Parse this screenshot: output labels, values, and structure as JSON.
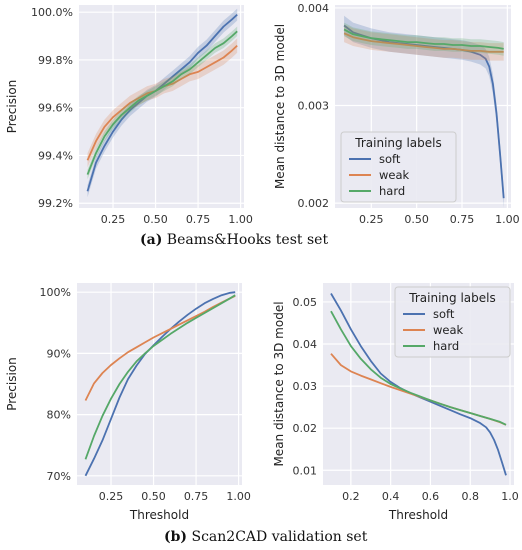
{
  "captions": [
    {
      "letter": "(a)",
      "text": "Beams&Hooks test set"
    },
    {
      "letter": "(b)",
      "text": "Scan2CAD validation set"
    }
  ],
  "colors": {
    "soft": "#4c72b0",
    "weak": "#dd8452",
    "hard": "#55a868"
  },
  "chart_data": [
    {
      "id": "a-left",
      "type": "line",
      "title": "",
      "xlabel": "",
      "ylabel": "Precision",
      "xlim": [
        0.05,
        1.02
      ],
      "ylim": [
        99.18,
        100.03
      ],
      "xticks": [
        0.25,
        0.5,
        0.75,
        1.0
      ],
      "xtick_labels": [
        "0.25",
        "0.50",
        "0.75",
        "1.00"
      ],
      "yticks": [
        99.2,
        99.4,
        99.6,
        99.8,
        100.0
      ],
      "ytick_labels": [
        "99.2%",
        "99.4%",
        "99.6%",
        "99.8%",
        "100.0%"
      ],
      "grid": true,
      "band": true,
      "legend": null,
      "series": [
        {
          "key": "soft",
          "x": [
            0.1,
            0.15,
            0.2,
            0.25,
            0.3,
            0.35,
            0.4,
            0.45,
            0.5,
            0.55,
            0.6,
            0.65,
            0.7,
            0.75,
            0.8,
            0.85,
            0.9,
            0.95,
            0.98
          ],
          "y": [
            99.25,
            99.37,
            99.44,
            99.5,
            99.55,
            99.59,
            99.62,
            99.65,
            99.67,
            99.7,
            99.73,
            99.76,
            99.79,
            99.83,
            99.86,
            99.9,
            99.94,
            99.97,
            99.99
          ],
          "band_width": 0.025
        },
        {
          "key": "weak",
          "x": [
            0.1,
            0.15,
            0.2,
            0.25,
            0.3,
            0.35,
            0.4,
            0.45,
            0.5,
            0.55,
            0.6,
            0.65,
            0.7,
            0.75,
            0.8,
            0.85,
            0.9,
            0.95,
            0.98
          ],
          "y": [
            99.38,
            99.46,
            99.52,
            99.56,
            99.59,
            99.62,
            99.64,
            99.66,
            99.67,
            99.69,
            99.7,
            99.72,
            99.74,
            99.75,
            99.77,
            99.79,
            99.81,
            99.84,
            99.86
          ],
          "band_width": 0.03
        },
        {
          "key": "hard",
          "x": [
            0.1,
            0.15,
            0.2,
            0.25,
            0.3,
            0.35,
            0.4,
            0.45,
            0.5,
            0.55,
            0.6,
            0.65,
            0.7,
            0.75,
            0.8,
            0.85,
            0.9,
            0.95,
            0.98
          ],
          "y": [
            99.32,
            99.41,
            99.48,
            99.53,
            99.57,
            99.6,
            99.63,
            99.65,
            99.67,
            99.69,
            99.71,
            99.74,
            99.76,
            99.79,
            99.82,
            99.85,
            99.87,
            99.9,
            99.92
          ],
          "band_width": 0.02
        }
      ]
    },
    {
      "id": "a-right",
      "type": "line",
      "title": "",
      "xlabel": "",
      "ylabel": "Mean distance to 3D model",
      "xlim": [
        0.05,
        1.02
      ],
      "ylim": [
        0.00195,
        0.00403
      ],
      "xticks": [
        0.25,
        0.5,
        0.75,
        1.0
      ],
      "xtick_labels": [
        "0.25",
        "0.50",
        "0.75",
        "1.00"
      ],
      "yticks": [
        0.002,
        0.003,
        0.004
      ],
      "ytick_labels": [
        "0.002",
        "0.003",
        "0.004"
      ],
      "grid": true,
      "band": true,
      "legend": {
        "title": "Training labels",
        "placement": "lower-left",
        "entries": [
          "soft",
          "weak",
          "hard"
        ]
      },
      "series": [
        {
          "key": "soft",
          "x": [
            0.1,
            0.15,
            0.2,
            0.25,
            0.3,
            0.35,
            0.4,
            0.45,
            0.5,
            0.55,
            0.6,
            0.65,
            0.7,
            0.75,
            0.8,
            0.85,
            0.88,
            0.9,
            0.92,
            0.94,
            0.96,
            0.98
          ],
          "y": [
            0.00382,
            0.00375,
            0.00372,
            0.00369,
            0.00367,
            0.00365,
            0.00364,
            0.00363,
            0.00362,
            0.00361,
            0.0036,
            0.00359,
            0.00358,
            0.00357,
            0.00355,
            0.00352,
            0.00348,
            0.0034,
            0.00322,
            0.00292,
            0.0025,
            0.00205
          ],
          "band_width": 0.0001
        },
        {
          "key": "weak",
          "x": [
            0.1,
            0.15,
            0.2,
            0.25,
            0.3,
            0.35,
            0.4,
            0.45,
            0.5,
            0.55,
            0.6,
            0.65,
            0.7,
            0.75,
            0.8,
            0.85,
            0.9,
            0.95,
            0.98
          ],
          "y": [
            0.00374,
            0.0037,
            0.00368,
            0.00366,
            0.00365,
            0.00364,
            0.00363,
            0.00362,
            0.00361,
            0.0036,
            0.00359,
            0.00358,
            0.00358,
            0.00357,
            0.00356,
            0.00356,
            0.00355,
            0.00355,
            0.00355
          ],
          "band_width": 9e-05
        },
        {
          "key": "hard",
          "x": [
            0.1,
            0.15,
            0.2,
            0.25,
            0.3,
            0.35,
            0.4,
            0.45,
            0.5,
            0.55,
            0.6,
            0.65,
            0.7,
            0.75,
            0.8,
            0.85,
            0.9,
            0.95,
            0.98
          ],
          "y": [
            0.00378,
            0.00373,
            0.00371,
            0.00369,
            0.00368,
            0.00367,
            0.00366,
            0.00365,
            0.00365,
            0.00364,
            0.00363,
            0.00363,
            0.00362,
            0.00362,
            0.00361,
            0.00361,
            0.0036,
            0.00359,
            0.00358
          ],
          "band_width": 7e-05
        }
      ]
    },
    {
      "id": "b-left",
      "type": "line",
      "title": "",
      "xlabel": "Threshold",
      "ylabel": "Precision",
      "xlim": [
        0.05,
        1.02
      ],
      "ylim": [
        68.5,
        101.5
      ],
      "xticks": [
        0.25,
        0.5,
        0.75,
        1.0
      ],
      "xtick_labels": [
        "0.25",
        "0.50",
        "0.75",
        "1.00"
      ],
      "yticks": [
        70,
        80,
        90,
        100
      ],
      "ytick_labels": [
        "70%",
        "80%",
        "90%",
        "100%"
      ],
      "grid": true,
      "band": false,
      "legend": null,
      "series": [
        {
          "key": "soft",
          "x": [
            0.1,
            0.15,
            0.2,
            0.25,
            0.3,
            0.35,
            0.4,
            0.45,
            0.5,
            0.55,
            0.6,
            0.65,
            0.7,
            0.75,
            0.8,
            0.85,
            0.9,
            0.95,
            0.98
          ],
          "y": [
            70,
            72.8,
            75.8,
            79.3,
            82.8,
            85.8,
            88,
            89.9,
            91.3,
            92.7,
            94,
            95.2,
            96.3,
            97.3,
            98.2,
            98.9,
            99.5,
            99.9,
            100
          ]
        },
        {
          "key": "weak",
          "x": [
            0.1,
            0.15,
            0.2,
            0.25,
            0.3,
            0.35,
            0.4,
            0.45,
            0.5,
            0.55,
            0.6,
            0.65,
            0.7,
            0.75,
            0.8,
            0.85,
            0.9,
            0.95,
            0.98
          ],
          "y": [
            82.3,
            85.1,
            86.8,
            88.1,
            89.2,
            90.2,
            91,
            91.8,
            92.6,
            93.3,
            94,
            94.7,
            95.4,
            96.1,
            96.8,
            97.6,
            98.3,
            99,
            99.4
          ]
        },
        {
          "key": "hard",
          "x": [
            0.1,
            0.15,
            0.2,
            0.25,
            0.3,
            0.35,
            0.4,
            0.45,
            0.5,
            0.55,
            0.6,
            0.65,
            0.7,
            0.75,
            0.8,
            0.85,
            0.9,
            0.95,
            0.98
          ],
          "y": [
            72.7,
            76.5,
            79.8,
            82.6,
            85,
            87,
            88.7,
            90,
            91.2,
            92.2,
            93.2,
            94.1,
            95,
            95.8,
            96.6,
            97.4,
            98.2,
            99,
            99.5
          ]
        }
      ]
    },
    {
      "id": "b-right",
      "type": "line",
      "title": "",
      "xlabel": "Threshold",
      "ylabel": "Mean distance to 3D model",
      "xlim": [
        0.06,
        1.02
      ],
      "ylim": [
        0.0065,
        0.0545
      ],
      "xticks": [
        0.2,
        0.4,
        0.6,
        0.8,
        1.0
      ],
      "xtick_labels": [
        "0.2",
        "0.4",
        "0.6",
        "0.8",
        "1.0"
      ],
      "yticks": [
        0.01,
        0.02,
        0.03,
        0.04,
        0.05
      ],
      "ytick_labels": [
        "0.01",
        "0.02",
        "0.03",
        "0.04",
        "0.05"
      ],
      "grid": true,
      "band": false,
      "legend": {
        "title": "Training labels",
        "placement": "upper-right",
        "entries": [
          "soft",
          "weak",
          "hard"
        ]
      },
      "series": [
        {
          "key": "soft",
          "x": [
            0.1,
            0.15,
            0.2,
            0.25,
            0.3,
            0.35,
            0.4,
            0.45,
            0.5,
            0.55,
            0.6,
            0.65,
            0.7,
            0.75,
            0.8,
            0.85,
            0.88,
            0.9,
            0.92,
            0.94,
            0.96,
            0.98
          ],
          "y": [
            0.052,
            0.048,
            0.0435,
            0.0395,
            0.036,
            0.033,
            0.031,
            0.0295,
            0.0283,
            0.0273,
            0.0263,
            0.0253,
            0.0243,
            0.0233,
            0.0224,
            0.0212,
            0.0202,
            0.019,
            0.0172,
            0.0148,
            0.0118,
            0.0088
          ]
        },
        {
          "key": "weak",
          "x": [
            0.1,
            0.15,
            0.2,
            0.25,
            0.3,
            0.35,
            0.4,
            0.45,
            0.5,
            0.55,
            0.6,
            0.65,
            0.7,
            0.75,
            0.8,
            0.85,
            0.9,
            0.95,
            0.98
          ],
          "y": [
            0.0377,
            0.035,
            0.0335,
            0.0325,
            0.0316,
            0.0307,
            0.0298,
            0.029,
            0.0282,
            0.0274,
            0.0266,
            0.0258,
            0.025,
            0.0243,
            0.0236,
            0.0229,
            0.0222,
            0.0214,
            0.0208
          ]
        },
        {
          "key": "hard",
          "x": [
            0.1,
            0.15,
            0.2,
            0.25,
            0.3,
            0.35,
            0.4,
            0.45,
            0.5,
            0.55,
            0.6,
            0.65,
            0.7,
            0.75,
            0.8,
            0.85,
            0.9,
            0.95,
            0.98
          ],
          "y": [
            0.0478,
            0.0435,
            0.0395,
            0.0365,
            0.034,
            0.032,
            0.0305,
            0.0294,
            0.0284,
            0.0275,
            0.0266,
            0.0258,
            0.025,
            0.0243,
            0.0236,
            0.0229,
            0.0222,
            0.0215,
            0.0208
          ]
        }
      ]
    }
  ]
}
